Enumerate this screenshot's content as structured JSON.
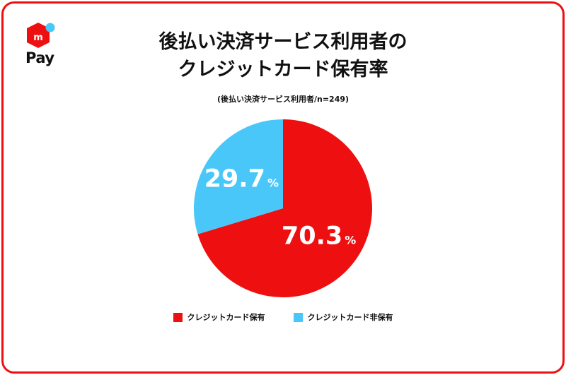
{
  "brand": {
    "logo_text": "Pay",
    "colors": {
      "red": "#ee1010",
      "blue": "#4ac7f9"
    }
  },
  "header": {
    "title_line1": "後払い決済サービス利用者の",
    "title_line2": "クレジットカード保有率",
    "subtitle": "(後払い決済サービス利用者/n=249)"
  },
  "chart_data": {
    "type": "pie",
    "title": "後払い決済サービス利用者のクレジットカード保有率",
    "subtitle": "(後払い決済サービス利用者/n=249)",
    "unit": "%",
    "slices": [
      {
        "label": "クレジットカード保有",
        "value": 70.3,
        "display": "70.3",
        "color": "#ee1010"
      },
      {
        "label": "クレジットカード非保有",
        "value": 29.7,
        "display": "29.7",
        "color": "#4ac7f9"
      }
    ],
    "start": "12 o'clock, clockwise",
    "legend_position": "bottom"
  }
}
